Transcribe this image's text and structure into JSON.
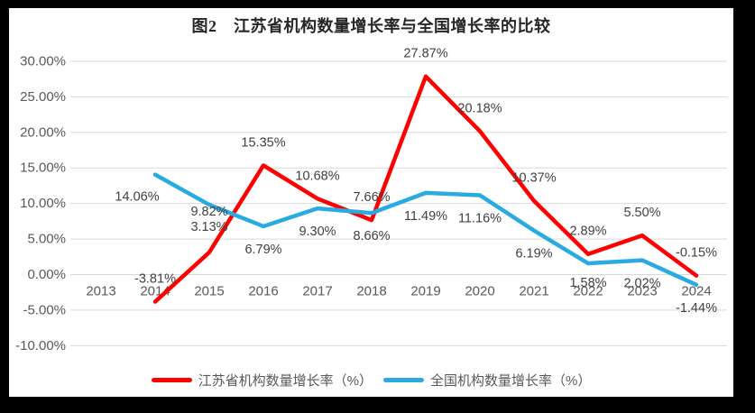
{
  "title": "图2　江苏省机构数量增长率与全国增长率的比较",
  "colors": {
    "background_frame": "#000000",
    "panel": "#ffffff",
    "gridline": "#d9d9d9",
    "axis_text": "#595959",
    "data_label_text": "#404040",
    "series_jiangsu": "#fe0000",
    "series_national": "#29abe2"
  },
  "chart_data": {
    "type": "line",
    "title": "图2　江苏省机构数量增长率与全国增长率的比较",
    "categories": [
      "2013",
      "2014",
      "2015",
      "2016",
      "2017",
      "2018",
      "2019",
      "2020",
      "2021",
      "2022",
      "2023",
      "2024"
    ],
    "series": [
      {
        "name": "江苏省机构数量增长率（%）",
        "color": "#fe0000",
        "values": [
          null,
          -3.81,
          3.13,
          15.35,
          10.68,
          7.66,
          27.87,
          20.18,
          10.37,
          2.89,
          5.5,
          -0.15
        ],
        "labels": [
          null,
          "-3.81%",
          "3.13%",
          "15.35%",
          "10.68%",
          "7.66%",
          "27.87%",
          "20.18%",
          "10.37%",
          "2.89%",
          "5.50%",
          "-0.15%"
        ]
      },
      {
        "name": "全国机构数量增长率（%）",
        "color": "#29abe2",
        "values": [
          null,
          14.06,
          9.82,
          6.79,
          9.3,
          8.66,
          11.49,
          11.16,
          6.19,
          1.58,
          2.02,
          -1.44
        ],
        "labels": [
          null,
          "14.06%",
          "9.82%",
          "6.79%",
          "9.30%",
          "8.66%",
          "11.49%",
          "11.16%",
          "6.19%",
          "1.58%",
          "2.02%",
          "-1.44%"
        ]
      }
    ],
    "y_ticks": [
      "30.00%",
      "25.00%",
      "20.00%",
      "15.00%",
      "10.00%",
      "5.00%",
      "0.00%",
      "-5.00%",
      "-10.00%"
    ],
    "y_tick_values": [
      30,
      25,
      20,
      15,
      10,
      5,
      0,
      -5,
      -10
    ],
    "ylim": [
      -10,
      30
    ],
    "xlabel": "",
    "ylabel": "",
    "grid": true,
    "legend_position": "bottom"
  }
}
